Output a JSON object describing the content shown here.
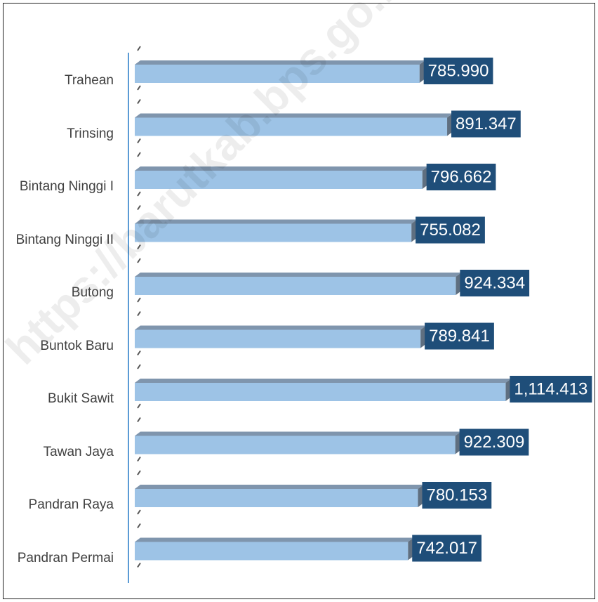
{
  "chart_data": {
    "type": "bar",
    "orientation": "horizontal",
    "categories": [
      "Trahean",
      "Trinsing",
      "Bintang Ninggi I",
      "Bintang Ninggi II",
      "Butong",
      "Buntok Baru",
      "Bukit Sawit",
      "Tawan Jaya",
      "Pandran Raya",
      "Pandran Permai"
    ],
    "values": [
      785.99,
      891.347,
      796.662,
      755.082,
      924.334,
      789.841,
      1114.413,
      922.309,
      780.153,
      742.017
    ],
    "value_labels": [
      "785.990",
      "891.347",
      "796.662",
      "755.082",
      "924.334",
      "789.841",
      "1,114.413",
      "922.309",
      "780.153",
      "742.017"
    ],
    "color": "#9dc3e6",
    "label_color": "#1f4e79",
    "xlim": [
      -300,
      1250
    ],
    "watermark": "https://barutkab.bps.go.id"
  }
}
